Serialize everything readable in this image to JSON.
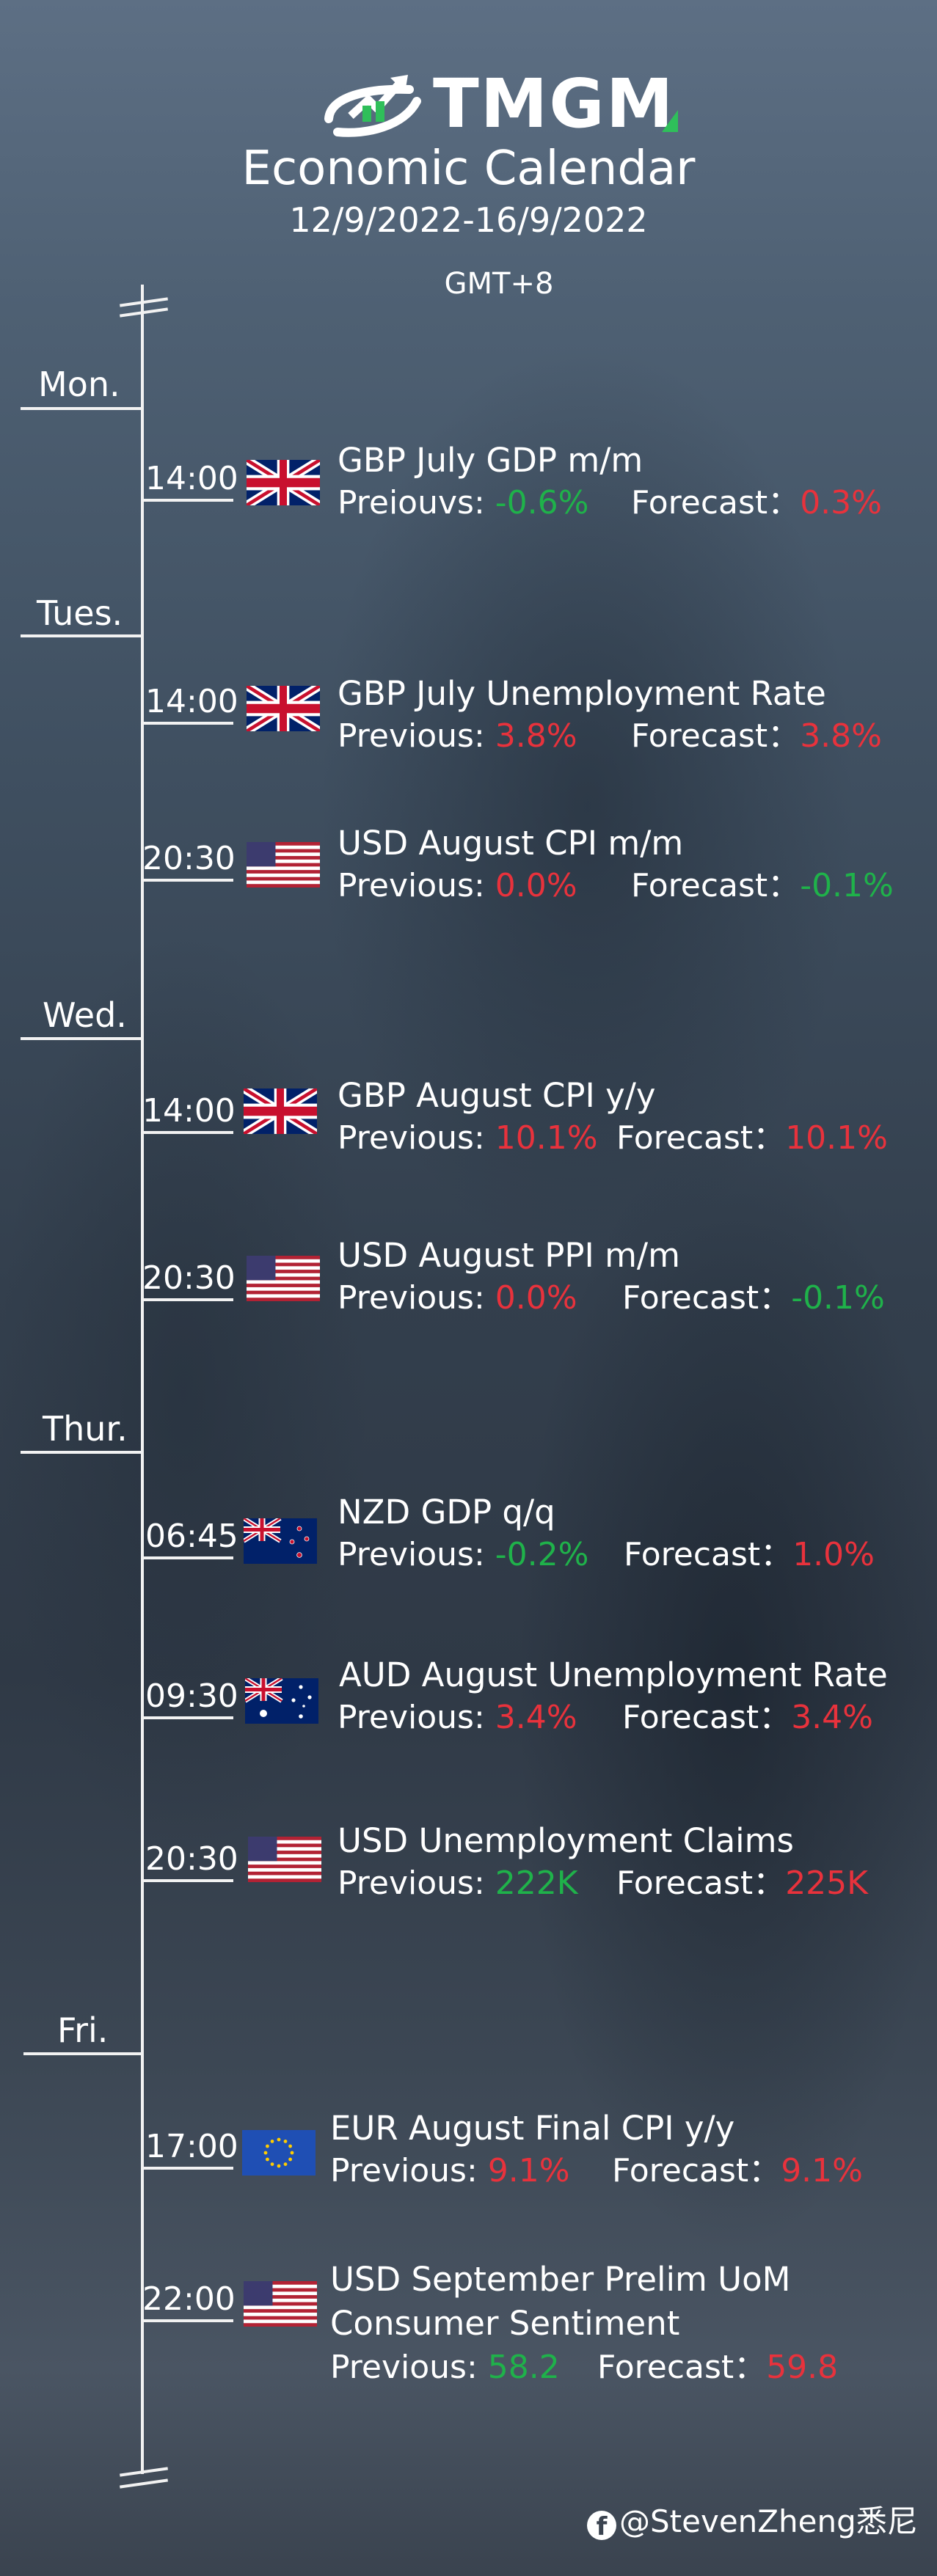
{
  "header": {
    "logo_text": "TMGM",
    "title": "Economic Calendar",
    "date_range": "12/9/2022-16/9/2022",
    "timezone": "GMT+8"
  },
  "days": [
    {
      "label": "Mon."
    },
    {
      "label": "Tues."
    },
    {
      "label": "Wed."
    },
    {
      "label": "Thur."
    },
    {
      "label": "Fri."
    }
  ],
  "events": [
    {
      "time": "14:00",
      "flag": "uk-flag-icon",
      "title": "GBP July GDP m/m",
      "previous_label": "Preiouvs:",
      "previous": "-0.6%",
      "previous_color": "#1fb24a",
      "forecast_label": "Forecast：",
      "forecast": "0.3%",
      "forecast_color": "#e8323c"
    },
    {
      "time": "14:00",
      "flag": "uk-flag-icon",
      "title": "GBP July Unemployment Rate",
      "previous_label": "Previous:",
      "previous": "3.8%",
      "previous_color": "#e8323c",
      "forecast_label": "Forecast：",
      "forecast": "3.8%",
      "forecast_color": "#e8323c"
    },
    {
      "time": "20:30",
      "flag": "us-flag-icon",
      "title": "USD August CPI m/m",
      "previous_label": "Previous:",
      "previous": "0.0%",
      "previous_color": "#e8323c",
      "forecast_label": "Forecast：",
      "forecast": "-0.1%",
      "forecast_color": "#1fb24a"
    },
    {
      "time": "14:00",
      "flag": "uk-flag-icon",
      "title": "GBP August CPI y/y",
      "previous_label": "Previous:",
      "previous": "10.1%",
      "previous_color": "#e8323c",
      "forecast_label": "Forecast：",
      "forecast": "10.1%",
      "forecast_color": "#e8323c"
    },
    {
      "time": "20:30",
      "flag": "us-flag-icon",
      "title": "USD August PPI m/m",
      "previous_label": "Previous:",
      "previous": "0.0%",
      "previous_color": "#e8323c",
      "forecast_label": "Forecast：",
      "forecast": "-0.1%",
      "forecast_color": "#1fb24a"
    },
    {
      "time": "06:45",
      "flag": "nz-flag-icon",
      "title": "NZD GDP q/q",
      "previous_label": "Previous:",
      "previous": "-0.2%",
      "previous_color": "#1fb24a",
      "forecast_label": "Forecast：",
      "forecast": "1.0%",
      "forecast_color": "#e8323c"
    },
    {
      "time": "09:30",
      "flag": "au-flag-icon",
      "title": "AUD August Unemployment Rate",
      "previous_label": "Previous:",
      "previous": "3.4%",
      "previous_color": "#e8323c",
      "forecast_label": "Forecast：",
      "forecast": "3.4%",
      "forecast_color": "#e8323c"
    },
    {
      "time": "20:30",
      "flag": "us-flag-icon",
      "title": "USD Unemployment Claims",
      "previous_label": "Previous:",
      "previous": "222K",
      "previous_color": "#1fb24a",
      "forecast_label": "Forecast：",
      "forecast": "225K",
      "forecast_color": "#e8323c"
    },
    {
      "time": "17:00",
      "flag": "eu-flag-icon",
      "title": "EUR August Final CPI y/y",
      "previous_label": "Previous:",
      "previous": "9.1%",
      "previous_color": "#e8323c",
      "forecast_label": "Forecast：",
      "forecast": "9.1%",
      "forecast_color": "#e8323c"
    },
    {
      "time": "22:00",
      "flag": "us-flag-icon",
      "title": "USD September Prelim UoM",
      "title_line2": "Consumer Sentiment",
      "previous_label": "Previous:",
      "previous": "58.2",
      "previous_color": "#1fb24a",
      "forecast_label": "Forecast：",
      "forecast": "59.8",
      "forecast_color": "#e8323c"
    }
  ],
  "credit": {
    "icon": "facebook-icon",
    "text": "@StevenZheng悉尼"
  }
}
